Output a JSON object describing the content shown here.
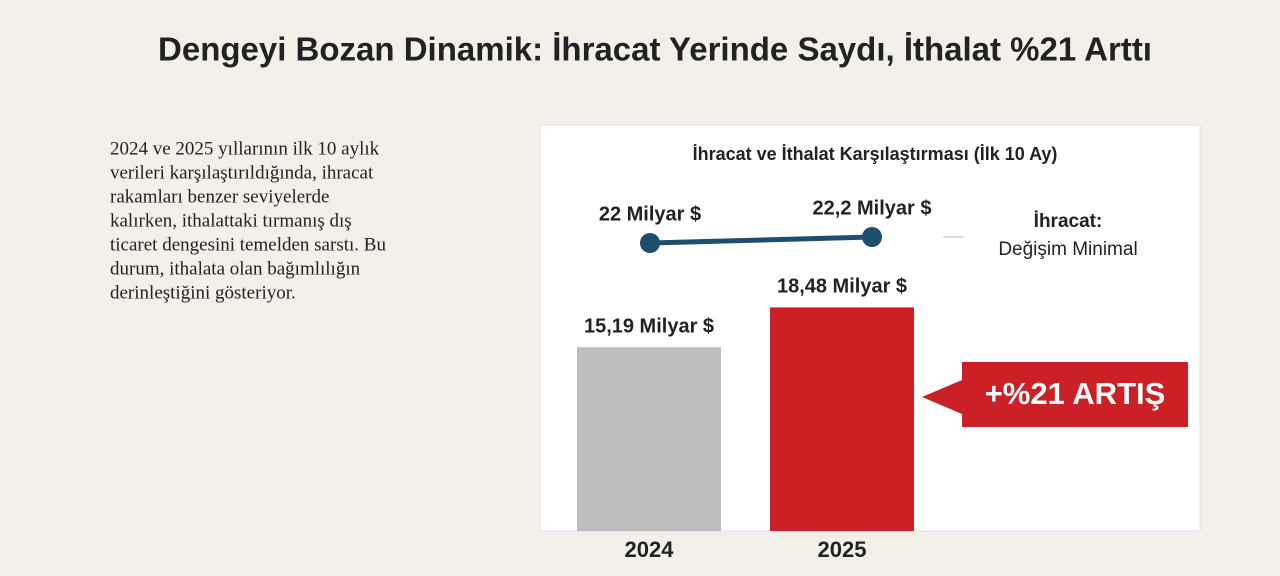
{
  "headline": "Dengeyi Bozan Dinamik: İhracat Yerinde Saydı, İthalat %21 Arttı",
  "paragraph": [
    "2024 ve 2025 yıllarının ilk 10 aylık",
    "verileri karşılaştırıldığında, ihracat",
    "rakamları benzer seviyelerde",
    "kalırken, ithalattaki tırmanış dış",
    "ticaret dengesini temelden sarstı. Bu",
    "durum, ithalata olan bağımlılığın",
    "derinleştiğini gösteriyor."
  ],
  "chart_data": {
    "type": "bar",
    "title": "İhracat ve İthalat Karşılaştırması (İlk 10 Ay)",
    "categories": [
      "2024",
      "2025"
    ],
    "values": [
      15.19,
      18.48
    ],
    "value_labels": [
      "15,19 Milyar $",
      "18,48 Milyar $"
    ],
    "colors": [
      "#bdbdbd",
      "#cc2027"
    ],
    "line": {
      "type": "line",
      "values": [
        22,
        22.2
      ],
      "value_labels": [
        "22 Milyar $",
        "22,2 Milyar $"
      ],
      "color": "#1d4e6e"
    },
    "annotations": [
      "+%21 ARTIŞ",
      "İhracat:",
      "Değişim Minimal"
    ]
  }
}
